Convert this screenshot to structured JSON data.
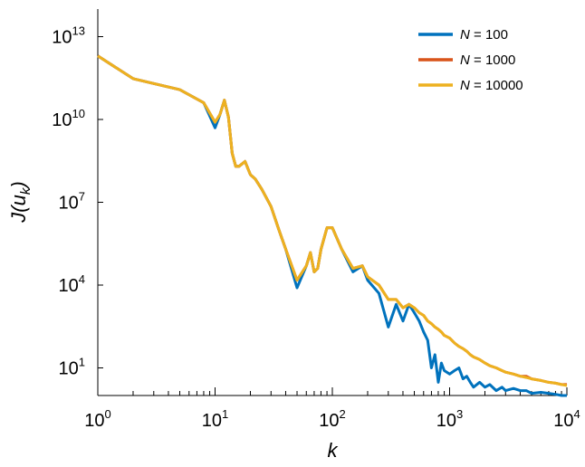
{
  "chart_data": {
    "type": "line",
    "title": "",
    "xlabel": "k",
    "ylabel": "J(u_k)",
    "xscale": "log",
    "yscale": "log",
    "xlim": [
      1,
      10000
    ],
    "ylim": [
      1,
      100000000000000.0
    ],
    "xticks": [
      {
        "value": 1,
        "base": "10",
        "exp": "0"
      },
      {
        "value": 10,
        "base": "10",
        "exp": "1"
      },
      {
        "value": 100,
        "base": "10",
        "exp": "2"
      },
      {
        "value": 1000,
        "base": "10",
        "exp": "3"
      },
      {
        "value": 10000,
        "base": "10",
        "exp": "4"
      }
    ],
    "yticks": [
      {
        "value": 10,
        "base": "10",
        "exp": "1"
      },
      {
        "value": 10000,
        "base": "10",
        "exp": "4"
      },
      {
        "value": 10000000,
        "base": "10",
        "exp": "7"
      },
      {
        "value": 10000000000,
        "base": "10",
        "exp": "10"
      },
      {
        "value": 10000000000000,
        "base": "10",
        "exp": "13"
      }
    ],
    "grid": false,
    "legend_position": "top-right",
    "series": [
      {
        "name": "N = 100",
        "color": "#0072BD",
        "x": [
          1,
          2,
          3,
          5,
          8,
          10,
          11,
          12,
          13,
          14,
          15,
          16,
          18,
          20,
          22,
          25,
          30,
          35,
          40,
          50,
          60,
          65,
          70,
          75,
          80,
          90,
          100,
          120,
          150,
          180,
          200,
          250,
          300,
          350,
          400,
          450,
          500,
          550,
          600,
          650,
          700,
          750,
          800,
          850,
          900,
          1000,
          1100,
          1200,
          1300,
          1400,
          1500,
          1600,
          1800,
          2000,
          2200,
          2500,
          2800,
          3000,
          3500,
          4000,
          4500,
          5000,
          6000,
          7000,
          8000,
          9000,
          10000
        ],
        "y": [
          2000000000000.0,
          300000000000.0,
          200000000000.0,
          120000000000.0,
          40000000000.0,
          5000000000.0,
          15000000000.0,
          50000000000.0,
          12000000000.0,
          600000000.0,
          200000000.0,
          200000000.0,
          300000000.0,
          100000000.0,
          70000000.0,
          30000000.0,
          7000000.0,
          1000000.0,
          200000.0,
          8000.0,
          50000.0,
          150000.0,
          30000.0,
          40000.0,
          200000.0,
          1200000.0,
          1200000.0,
          200000.0,
          30000.0,
          50000.0,
          15000.0,
          5000.0,
          300.0,
          2000.0,
          500,
          2000.0,
          1000,
          500,
          200,
          100,
          10,
          30,
          3,
          15,
          8,
          6,
          8,
          10,
          4,
          5,
          3,
          2,
          3,
          2,
          2.5,
          1.5,
          2,
          1.5,
          1.8,
          1.5,
          1.5,
          1.2,
          1.3,
          1.2,
          1.1,
          1,
          1
        ]
      },
      {
        "name": "N = 1000",
        "color": "#D95319",
        "x": [
          1,
          2,
          3,
          5,
          8,
          10,
          11,
          12,
          13,
          14,
          15,
          16,
          18,
          20,
          22,
          25,
          30,
          35,
          40,
          50,
          60,
          65,
          70,
          75,
          80,
          90,
          100,
          120,
          150,
          180,
          200,
          250,
          300,
          350,
          400,
          450,
          500,
          550,
          600,
          650,
          700,
          750,
          800,
          850,
          900,
          1000,
          1100,
          1200,
          1300,
          1400,
          1500,
          1600,
          1800,
          2000,
          2200,
          2500,
          2800,
          3000,
          3500,
          4000,
          4500,
          5000,
          6000,
          7000,
          8000,
          9000,
          10000
        ],
        "y": [
          2000000000000.0,
          300000000000.0,
          200000000000.0,
          120000000000.0,
          40000000000.0,
          8000000000.0,
          15000000000.0,
          50000000000.0,
          12000000000.0,
          600000000.0,
          200000000.0,
          200000000.0,
          300000000.0,
          100000000.0,
          70000000.0,
          30000000.0,
          7000000.0,
          1000000.0,
          200000.0,
          15000.0,
          50000.0,
          150000.0,
          30000.0,
          40000.0,
          200000.0,
          1200000.0,
          1200000.0,
          200000.0,
          40000.0,
          50000.0,
          20000.0,
          10000.0,
          3000.0,
          3000.0,
          1500.0,
          2000.0,
          1500.0,
          1000.0,
          800,
          500,
          400,
          300,
          250,
          200,
          150,
          120,
          80,
          60,
          50,
          40,
          30,
          25,
          20,
          15,
          12,
          10,
          8,
          7,
          6,
          5,
          5,
          4,
          3.5,
          3,
          2.8,
          2.5,
          2.5
        ]
      },
      {
        "name": "N = 10000",
        "color": "#EDB120",
        "x": [
          1,
          2,
          3,
          5,
          8,
          10,
          11,
          12,
          13,
          14,
          15,
          16,
          18,
          20,
          22,
          25,
          30,
          35,
          40,
          50,
          60,
          65,
          70,
          75,
          80,
          90,
          100,
          120,
          150,
          180,
          200,
          250,
          300,
          350,
          400,
          450,
          500,
          550,
          600,
          650,
          700,
          750,
          800,
          850,
          900,
          1000,
          1100,
          1200,
          1300,
          1400,
          1500,
          1600,
          1800,
          2000,
          2200,
          2500,
          2800,
          3000,
          3500,
          4000,
          4500,
          5000,
          6000,
          7000,
          8000,
          9000,
          10000
        ],
        "y": [
          2000000000000.0,
          300000000000.0,
          200000000000.0,
          120000000000.0,
          40000000000.0,
          8000000000.0,
          15000000000.0,
          50000000000.0,
          12000000000.0,
          600000000.0,
          200000000.0,
          200000000.0,
          300000000.0,
          100000000.0,
          70000000.0,
          30000000.0,
          7000000.0,
          1000000.0,
          200000.0,
          15000.0,
          50000.0,
          150000.0,
          30000.0,
          40000.0,
          200000.0,
          1200000.0,
          1200000.0,
          200000.0,
          40000.0,
          50000.0,
          20000.0,
          10000.0,
          3000.0,
          3000.0,
          1500.0,
          2000.0,
          1500.0,
          1000.0,
          800,
          500,
          400,
          300,
          250,
          200,
          150,
          120,
          80,
          60,
          50,
          40,
          30,
          25,
          20,
          15,
          12,
          10,
          8,
          7,
          6,
          5,
          4.5,
          4,
          3.5,
          3,
          2.8,
          2.5,
          2.3
        ]
      }
    ]
  }
}
